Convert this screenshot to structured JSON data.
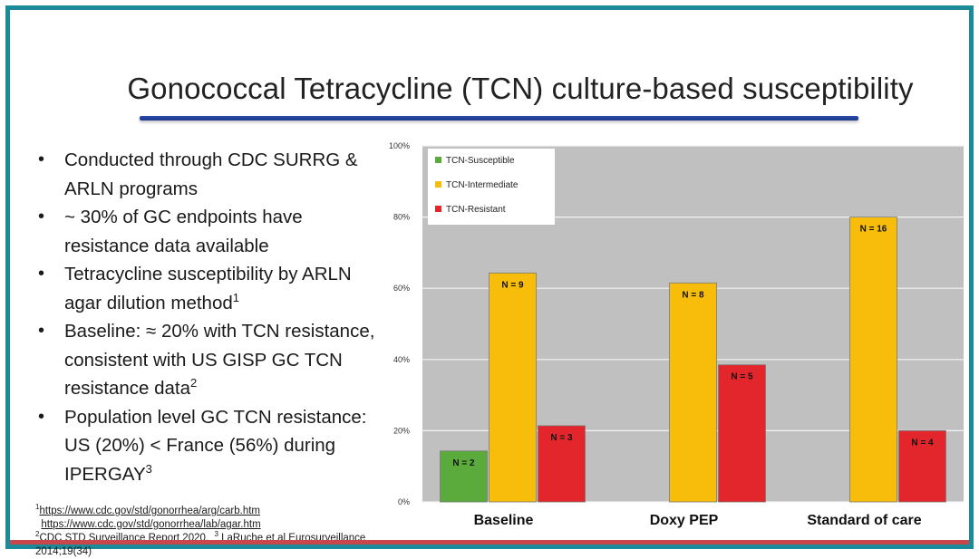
{
  "slide": {
    "title": "Gonococcal Tetracycline (TCN) culture-based susceptibility",
    "bullets": [
      {
        "text": "Conducted through CDC SURRG & ARLN programs",
        "sup": ""
      },
      {
        "text": "~ 30% of GC endpoints have resistance data available",
        "sup": ""
      },
      {
        "text": "Tetracycline susceptibility by ARLN agar dilution method",
        "sup": "1"
      },
      {
        "text": "Baseline: ≈ 20% with TCN resistance, consistent with US GISP GC TCN resistance data",
        "sup": "2"
      },
      {
        "text": "Population level GC TCN resistance: US (20%) < France (56%) during IPERGAY",
        "sup": "3"
      }
    ],
    "bullet_glyph": "•",
    "refs": {
      "r1_num": "1",
      "r1_link1": "https://www.cdc.gov/std/gonorrhea/arg/carb.htm",
      "r1_link2": "https://www.cdc.gov/std/gonorrhea/lab/agar.htm",
      "r2_num": "2",
      "r2_text": "CDC STD Surveillance Report 2020,",
      "r3_num": "3",
      "r3_text": "LaRuche et al  Eurosurveillance 2014;19(34)"
    }
  },
  "colors": {
    "frame": "#1b8a99",
    "plot_bg": "#c0c0c0",
    "susceptible": "#5aab3c",
    "intermediate": "#f7bd0a",
    "resistant": "#e3262c"
  },
  "chart_data": {
    "type": "bar",
    "categories": [
      "Baseline",
      "Doxy PEP",
      "Standard of care"
    ],
    "series": [
      {
        "name": "TCN-Susceptible",
        "values": [
          14.3,
          0,
          0
        ],
        "labels": [
          "N = 2",
          "",
          ""
        ]
      },
      {
        "name": "TCN-Intermediate",
        "values": [
          64.3,
          61.5,
          80
        ],
        "labels": [
          "N = 9",
          "N = 8",
          "N = 16"
        ]
      },
      {
        "name": "TCN-Resistant",
        "values": [
          21.4,
          38.5,
          20
        ],
        "labels": [
          "N = 3",
          "N = 5",
          "N = 4"
        ]
      }
    ],
    "yticks": [
      "0%",
      "20%",
      "40%",
      "60%",
      "80%",
      "100%"
    ],
    "ylim": [
      0,
      100
    ],
    "grid": true,
    "legend": "top-left",
    "title": "",
    "xlabel": "",
    "ylabel": ""
  }
}
